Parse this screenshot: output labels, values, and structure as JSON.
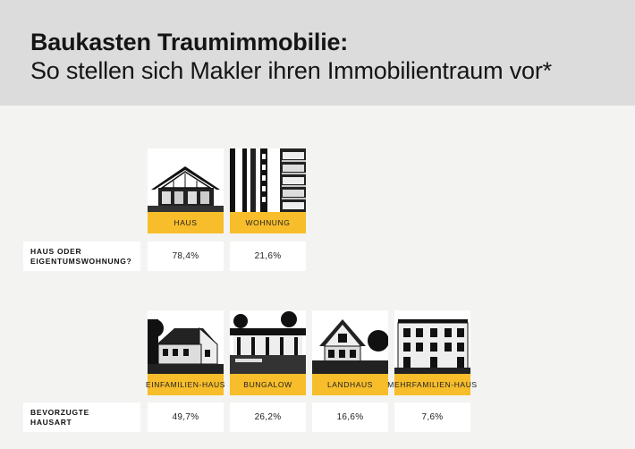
{
  "header": {
    "title_line1": "Baukasten Traumimmobilie:",
    "title_line2": "So stellen sich Makler ihren Immobilientraum vor*"
  },
  "section1": {
    "row_label_line1": "HAUS ODER",
    "row_label_line2": "EIGENTUMSWOHNUNG?",
    "items": [
      {
        "label_line1": "HAUS",
        "label_line2": "",
        "value": "78,4%",
        "icon": "house-photo"
      },
      {
        "label_line1": "WOHNUNG",
        "label_line2": "",
        "value": "21,6%",
        "icon": "apartment-photo"
      }
    ]
  },
  "section2": {
    "row_label_line1": "BEVORZUGTE",
    "row_label_line2": "HAUSART",
    "items": [
      {
        "label_line1": "EINFAMILIEN-",
        "label_line2": "HAUS",
        "value": "49,7%",
        "icon": "single-family-house-photo"
      },
      {
        "label_line1": "BUNGALOW",
        "label_line2": "",
        "value": "26,2%",
        "icon": "bungalow-photo"
      },
      {
        "label_line1": "LANDHAUS",
        "label_line2": "",
        "value": "16,6%",
        "icon": "country-house-photo"
      },
      {
        "label_line1": "MEHRFAMILIEN-",
        "label_line2": "HAUS",
        "value": "7,6%",
        "icon": "multi-family-house-photo"
      }
    ]
  },
  "colors": {
    "accent": "#f7bd2a",
    "header_bg": "#dcdcdc",
    "page_bg": "#f3f3f1"
  }
}
